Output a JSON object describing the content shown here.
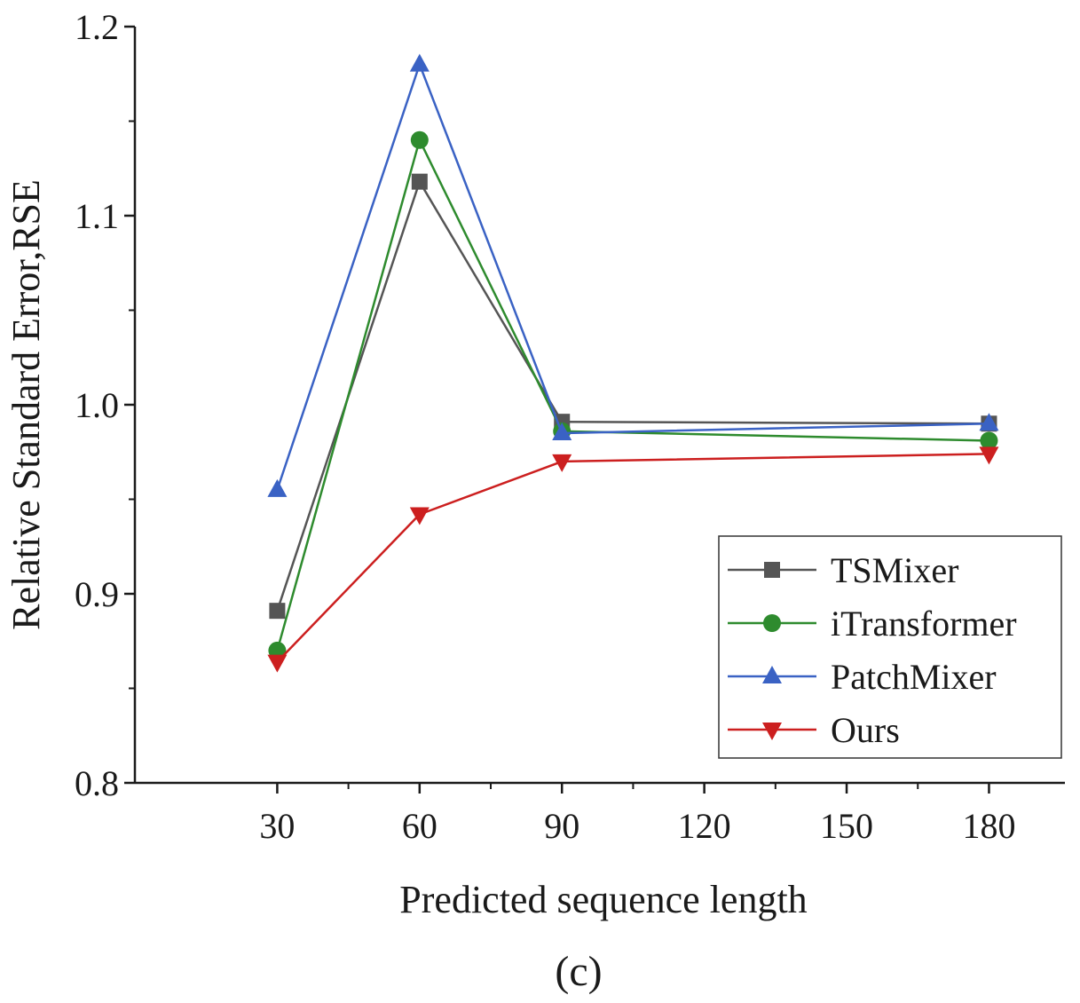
{
  "chart_data": {
    "type": "line",
    "title": "",
    "xlabel": "Predicted sequence length",
    "ylabel": "Relative Standard Error,RSE",
    "panel_label": "(c)",
    "x_ticks": [
      30,
      60,
      90,
      120,
      150,
      180
    ],
    "x_tick_labels": [
      "30",
      "60",
      "90",
      "120",
      "150",
      "180"
    ],
    "y_ticks": [
      0.8,
      0.9,
      1.0,
      1.1,
      1.2
    ],
    "y_tick_labels": [
      "0.8",
      "0.9",
      "1.0",
      "1.1",
      "1.2"
    ],
    "xlim": [
      0,
      196
    ],
    "ylim": [
      0.8,
      1.2
    ],
    "grid": false,
    "legend_position": "bottom-right",
    "series": [
      {
        "name": "TSMixer",
        "x": [
          30,
          60,
          90,
          180
        ],
        "values": [
          0.891,
          1.118,
          0.991,
          0.99
        ],
        "color": "#555555",
        "marker": "square"
      },
      {
        "name": "iTransformer",
        "x": [
          30,
          60,
          90,
          180
        ],
        "values": [
          0.87,
          1.14,
          0.986,
          0.981
        ],
        "color": "#2e8b2e",
        "marker": "circle"
      },
      {
        "name": "PatchMixer",
        "x": [
          30,
          60,
          90,
          180
        ],
        "values": [
          0.955,
          1.18,
          0.985,
          0.99
        ],
        "color": "#3a62c4",
        "marker": "triangle-up"
      },
      {
        "name": "Ours",
        "x": [
          30,
          60,
          90,
          180
        ],
        "values": [
          0.864,
          0.942,
          0.97,
          0.974
        ],
        "color": "#cc1f1f",
        "marker": "triangle-down"
      }
    ]
  }
}
